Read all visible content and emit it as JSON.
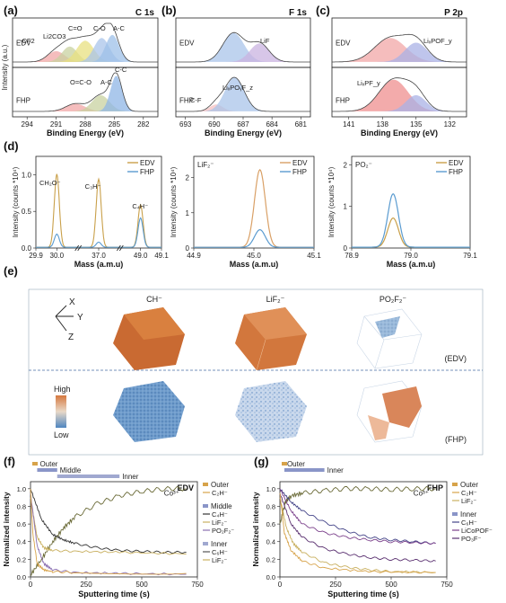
{
  "chart_data": [
    {
      "panel": "(a)",
      "type": "line",
      "title": "C 1s",
      "xlabel": "Binding Energy (eV)",
      "ylabel": "Intensity (a.u.)",
      "xticks": [
        "294",
        "291",
        "288",
        "285",
        "282"
      ],
      "xlim": [
        295.5,
        280.5
      ],
      "subplots": [
        {
          "sample": "EDV",
          "peaks": [
            {
              "name": "-CF2-",
              "center": 291.0,
              "height": 0.28,
              "width": 0.9,
              "color": "#f2a7a7"
            },
            {
              "name": "Li2CO3",
              "center": 289.6,
              "height": 0.4,
              "width": 0.8,
              "color": "#c8d2a0"
            },
            {
              "name": "C=O",
              "center": 288.0,
              "height": 0.55,
              "width": 0.9,
              "color": "#e8e080"
            },
            {
              "name": "C-O",
              "center": 286.3,
              "height": 0.62,
              "width": 0.8,
              "color": "#a9c4ea"
            },
            {
              "name": "A-C",
              "center": 285.2,
              "height": 0.7,
              "width": 0.7,
              "color": "#9ec0e8"
            }
          ]
        },
        {
          "sample": "FHP",
          "peaks": [
            {
              "name": "O=C-O",
              "center": 289.0,
              "height": 0.2,
              "width": 1.0,
              "color": "#f2a7a7"
            },
            {
              "name": "A-C",
              "center": 286.4,
              "height": 0.42,
              "width": 0.9,
              "color": "#c8d2a0"
            },
            {
              "name": "C-C",
              "center": 284.8,
              "height": 0.92,
              "width": 0.6,
              "color": "#8fb6e6"
            }
          ]
        }
      ],
      "annotations": [
        "-CF2",
        "Li2CO3",
        "C=O",
        "C-O",
        "A-C",
        "O=C-O",
        "A-C",
        "C-C"
      ],
      "samples": [
        "EDV",
        "FHP"
      ]
    },
    {
      "panel": "(b)",
      "type": "line",
      "title": "F 1s",
      "xlabel": "Binding Energy (eV)",
      "ylabel": "",
      "xticks": [
        "693",
        "690",
        "687",
        "684",
        "681"
      ],
      "xlim": [
        694,
        680
      ],
      "subplots": [
        {
          "sample": "EDV",
          "peaks": [
            {
              "name": "LixPOyFz",
              "center": 688.0,
              "height": 0.75,
              "width": 1.1,
              "color": "#a9c4ea"
            },
            {
              "name": "LiF",
              "center": 685.3,
              "height": 0.48,
              "width": 1.0,
              "color": "#c9b3e0"
            }
          ]
        },
        {
          "sample": "FHP",
          "peaks": [
            {
              "name": "C-F",
              "center": 689.8,
              "height": 0.18,
              "width": 0.7,
              "color": "#f5c0c0"
            },
            {
              "name": "LixPOyFz",
              "center": 687.9,
              "height": 0.88,
              "width": 1.0,
              "color": "#a9c4ea"
            }
          ]
        }
      ],
      "annotations": [
        "LiF",
        "C-F",
        "LiₓPOᵧF_z"
      ],
      "samples": [
        "EDV",
        "FHP"
      ]
    },
    {
      "panel": "(c)",
      "type": "line",
      "title": "P 2p",
      "xlabel": "Binding Energy (eV)",
      "ylabel": "",
      "xticks": [
        "141",
        "138",
        "135",
        "132"
      ],
      "xlim": [
        142.5,
        130.5
      ],
      "subplots": [
        {
          "sample": "EDV",
          "peaks": [
            {
              "name": "LixPFy",
              "center": 137.3,
              "height": 0.62,
              "width": 1.4,
              "color": "#f2a7a7"
            },
            {
              "name": "LixPOFy",
              "center": 135.0,
              "height": 0.5,
              "width": 1.0,
              "color": "#a9b2e6"
            }
          ]
        },
        {
          "sample": "FHP",
          "peaks": [
            {
              "name": "LixPFy",
              "center": 137.0,
              "height": 0.82,
              "width": 1.3,
              "color": "#ef8f8f"
            },
            {
              "name": "LixPOFy",
              "center": 135.0,
              "height": 0.42,
              "width": 0.9,
              "color": "#a9b2e6"
            }
          ]
        }
      ],
      "annotations": [
        "LiₓPOF_y",
        "LiₓPF_y"
      ],
      "samples": [
        "EDV",
        "FHP"
      ]
    },
    {
      "panel": "(d)",
      "type": "line",
      "xlabel": "Mass (a.m.u)",
      "ylabel": "Intensity (counts *10⁴)",
      "xticks": [
        "29.9",
        "30.0",
        "37.0",
        "49.0",
        "49.1"
      ],
      "yticks": [
        "0.0",
        "0.5",
        "1.0"
      ],
      "ylim": [
        0,
        1.25
      ],
      "legend": [
        "EDV",
        "FHP"
      ],
      "legend_position": "top-right",
      "annotations": [
        "CH₂O⁻",
        "C₃H⁻",
        "C₄H⁻"
      ],
      "series": [
        {
          "name": "EDV",
          "color": "#c9a04a",
          "peaks": [
            {
              "x": 30.0,
              "y": 1.0
            },
            {
              "x": 37.0,
              "y": 0.93
            },
            {
              "x": 49.0,
              "y": 0.58
            }
          ]
        },
        {
          "name": "FHP",
          "color": "#5a9bd0",
          "peaks": [
            {
              "x": 30.0,
              "y": 0.18
            },
            {
              "x": 37.0,
              "y": 0.07
            },
            {
              "x": 49.0,
              "y": 0.4
            }
          ]
        }
      ]
    },
    {
      "panel": "(d)",
      "type": "line",
      "title": "LiF₂⁻",
      "xlabel": "Mass (a.m.u)",
      "ylabel": "Intensity (counts *10⁴)",
      "xticks": [
        "44.9",
        "45.0",
        "45.1"
      ],
      "xlim": [
        44.9,
        45.1
      ],
      "yticks": [
        "0",
        "1",
        "2"
      ],
      "ylim": [
        0,
        2.6
      ],
      "legend": [
        "EDV",
        "FHP"
      ],
      "legend_position": "top-right",
      "series": [
        {
          "name": "EDV",
          "color": "#d9a066",
          "peak_x": 45.01,
          "peak_y": 2.2
        },
        {
          "name": "FHP",
          "color": "#5a9bd0",
          "peak_x": 45.01,
          "peak_y": 0.5
        }
      ]
    },
    {
      "panel": "(d)",
      "type": "line",
      "title": "PO₂⁻",
      "xlabel": "Mass (a.m.u)",
      "ylabel": "Intensity (counts *10⁴)",
      "xticks": [
        "78.9",
        "79.0",
        "79.1"
      ],
      "xlim": [
        78.9,
        79.1
      ],
      "yticks": [
        "0",
        "1",
        "2"
      ],
      "ylim": [
        0,
        2.2
      ],
      "legend": [
        "EDV",
        "FHP"
      ],
      "legend_position": "top-right",
      "series": [
        {
          "name": "EDV",
          "color": "#c9a04a",
          "peak_x": 78.97,
          "peak_y": 0.7
        },
        {
          "name": "FHP",
          "color": "#5a9bd0",
          "peak_x": 78.97,
          "peak_y": 1.28
        }
      ]
    },
    {
      "panel": "(f)",
      "type": "line",
      "title": "EDV",
      "xlabel": "Sputtering time (s)",
      "ylabel": "Normalized intensity",
      "xlim": [
        0,
        750
      ],
      "ylim": [
        0,
        1.08
      ],
      "xticks": [
        "0",
        "250",
        "500",
        "750"
      ],
      "yticks": [
        "0.0",
        "0.2",
        "0.4",
        "0.6",
        "0.8",
        "1.0"
      ],
      "depth_bars": [
        {
          "label": "Outer",
          "end": 30
        },
        {
          "label": "Middle",
          "end": 120
        },
        {
          "label": "Inner",
          "end": 400
        }
      ],
      "legend_groups": [
        {
          "group": "Outer",
          "items": [
            "C₂H⁻"
          ]
        },
        {
          "group": "Middle",
          "items": [
            "C₄H⁻",
            "LiF₂⁻",
            "PO₂F₂⁻"
          ]
        },
        {
          "group": "Inner",
          "items": [
            "C₆H⁻",
            "LiF₂⁻"
          ]
        }
      ],
      "annotation": "Co³⁺",
      "series": [
        {
          "name": "Co³⁺",
          "color": "#6b6b38",
          "points": [
            [
              0,
              0.02
            ],
            [
              50,
              0.2
            ],
            [
              100,
              0.4
            ],
            [
              150,
              0.56
            ],
            [
              200,
              0.68
            ],
            [
              300,
              0.83
            ],
            [
              400,
              0.92
            ],
            [
              500,
              0.97
            ],
            [
              600,
              1.0
            ],
            [
              700,
              1.0
            ]
          ]
        },
        {
          "name": "C₄H⁻",
          "color": "#333333",
          "points": [
            [
              0,
              1.0
            ],
            [
              50,
              0.65
            ],
            [
              100,
              0.48
            ],
            [
              150,
              0.42
            ],
            [
              200,
              0.38
            ],
            [
              300,
              0.33
            ],
            [
              400,
              0.3
            ],
            [
              500,
              0.29
            ],
            [
              600,
              0.28
            ],
            [
              700,
              0.28
            ]
          ]
        },
        {
          "name": "LiF₂⁻",
          "color": "#c9b060",
          "points": [
            [
              0,
              0.9
            ],
            [
              30,
              0.45
            ],
            [
              60,
              0.33
            ],
            [
              100,
              0.3
            ],
            [
              200,
              0.29
            ],
            [
              400,
              0.28
            ],
            [
              700,
              0.26
            ]
          ]
        },
        {
          "name": "PO₂F₂⁻",
          "color": "#8a6fb0",
          "points": [
            [
              0,
              0.95
            ],
            [
              30,
              0.35
            ],
            [
              60,
              0.15
            ],
            [
              100,
              0.08
            ],
            [
              200,
              0.05
            ],
            [
              400,
              0.04
            ],
            [
              700,
              0.03
            ]
          ]
        },
        {
          "name": "C₂H⁻",
          "color": "#d7a34a",
          "points": [
            [
              0,
              1.0
            ],
            [
              10,
              0.5
            ],
            [
              30,
              0.15
            ],
            [
              60,
              0.08
            ],
            [
              100,
              0.06
            ],
            [
              200,
              0.05
            ],
            [
              700,
              0.04
            ]
          ]
        }
      ]
    },
    {
      "panel": "(g)",
      "type": "line",
      "title": "FHP",
      "xlabel": "Sputtering time (s)",
      "ylabel": "Normalized intensity",
      "xlim": [
        0,
        750
      ],
      "ylim": [
        0,
        1.08
      ],
      "xticks": [
        "0",
        "250",
        "500",
        "750"
      ],
      "yticks": [
        "0.0",
        "0.2",
        "0.4",
        "0.6",
        "0.8",
        "1.0"
      ],
      "depth_bars": [
        {
          "label": "Outer",
          "end": 20
        },
        {
          "label": "Inner",
          "end": 200
        }
      ],
      "legend_groups": [
        {
          "group": "Outer",
          "items": [
            "C₂H⁻",
            "LiF₂⁻"
          ]
        },
        {
          "group": "Inner",
          "items": [
            "C₆H⁻",
            "LiCoPOF⁻",
            "PO₃F⁻"
          ]
        }
      ],
      "annotation": "Co³⁺",
      "series": [
        {
          "name": "Co³⁺",
          "color": "#6b6b38",
          "points": [
            [
              0,
              0.6
            ],
            [
              25,
              0.85
            ],
            [
              50,
              0.92
            ],
            [
              100,
              0.95
            ],
            [
              200,
              0.98
            ],
            [
              300,
              1.0
            ],
            [
              400,
              1.0
            ],
            [
              500,
              0.99
            ],
            [
              600,
              1.0
            ],
            [
              700,
              1.0
            ]
          ]
        },
        {
          "name": "C₆H⁻",
          "color": "#444488",
          "points": [
            [
              0,
              1.0
            ],
            [
              50,
              0.85
            ],
            [
              100,
              0.75
            ],
            [
              200,
              0.62
            ],
            [
              300,
              0.52
            ],
            [
              400,
              0.45
            ],
            [
              500,
              0.42
            ],
            [
              600,
              0.4
            ],
            [
              700,
              0.38
            ]
          ]
        },
        {
          "name": "LiCoPOF⁻",
          "color": "#7a3f8a",
          "points": [
            [
              0,
              1.0
            ],
            [
              50,
              0.75
            ],
            [
              100,
              0.6
            ],
            [
              200,
              0.5
            ],
            [
              300,
              0.45
            ],
            [
              400,
              0.42
            ],
            [
              500,
              0.4
            ],
            [
              600,
              0.39
            ],
            [
              700,
              0.38
            ]
          ]
        },
        {
          "name": "PO₃F⁻",
          "color": "#5a3070",
          "points": [
            [
              0,
              0.95
            ],
            [
              50,
              0.6
            ],
            [
              100,
              0.45
            ],
            [
              200,
              0.32
            ],
            [
              300,
              0.26
            ],
            [
              400,
              0.22
            ],
            [
              500,
              0.2
            ],
            [
              600,
              0.19
            ],
            [
              700,
              0.18
            ]
          ]
        },
        {
          "name": "LiF₂⁻",
          "color": "#c9b060",
          "points": [
            [
              0,
              0.9
            ],
            [
              30,
              0.55
            ],
            [
              60,
              0.38
            ],
            [
              100,
              0.28
            ],
            [
              200,
              0.16
            ],
            [
              300,
              0.11
            ],
            [
              400,
              0.08
            ],
            [
              500,
              0.06
            ],
            [
              700,
              0.05
            ]
          ]
        },
        {
          "name": "C₂H⁻",
          "color": "#d7a34a",
          "points": [
            [
              0,
              0.95
            ],
            [
              20,
              0.5
            ],
            [
              50,
              0.3
            ],
            [
              100,
              0.18
            ],
            [
              200,
              0.1
            ],
            [
              400,
              0.06
            ],
            [
              700,
              0.05
            ]
          ]
        }
      ]
    }
  ],
  "panel_e": {
    "label": "(e)",
    "columns": [
      "CH⁻",
      "LiF₂⁻",
      "PO₂F₂⁻"
    ],
    "rows": [
      "(EDV)",
      "(FHP)"
    ],
    "axes": [
      "X",
      "Y",
      "Z"
    ],
    "colorbar": [
      "High",
      "Low"
    ],
    "colors": {
      "edv_cube": "#cf6f35",
      "fhp_ch": "#4f86c0",
      "fhp_lif": "#6f98cf",
      "fhp_po": "#d9865a"
    }
  }
}
